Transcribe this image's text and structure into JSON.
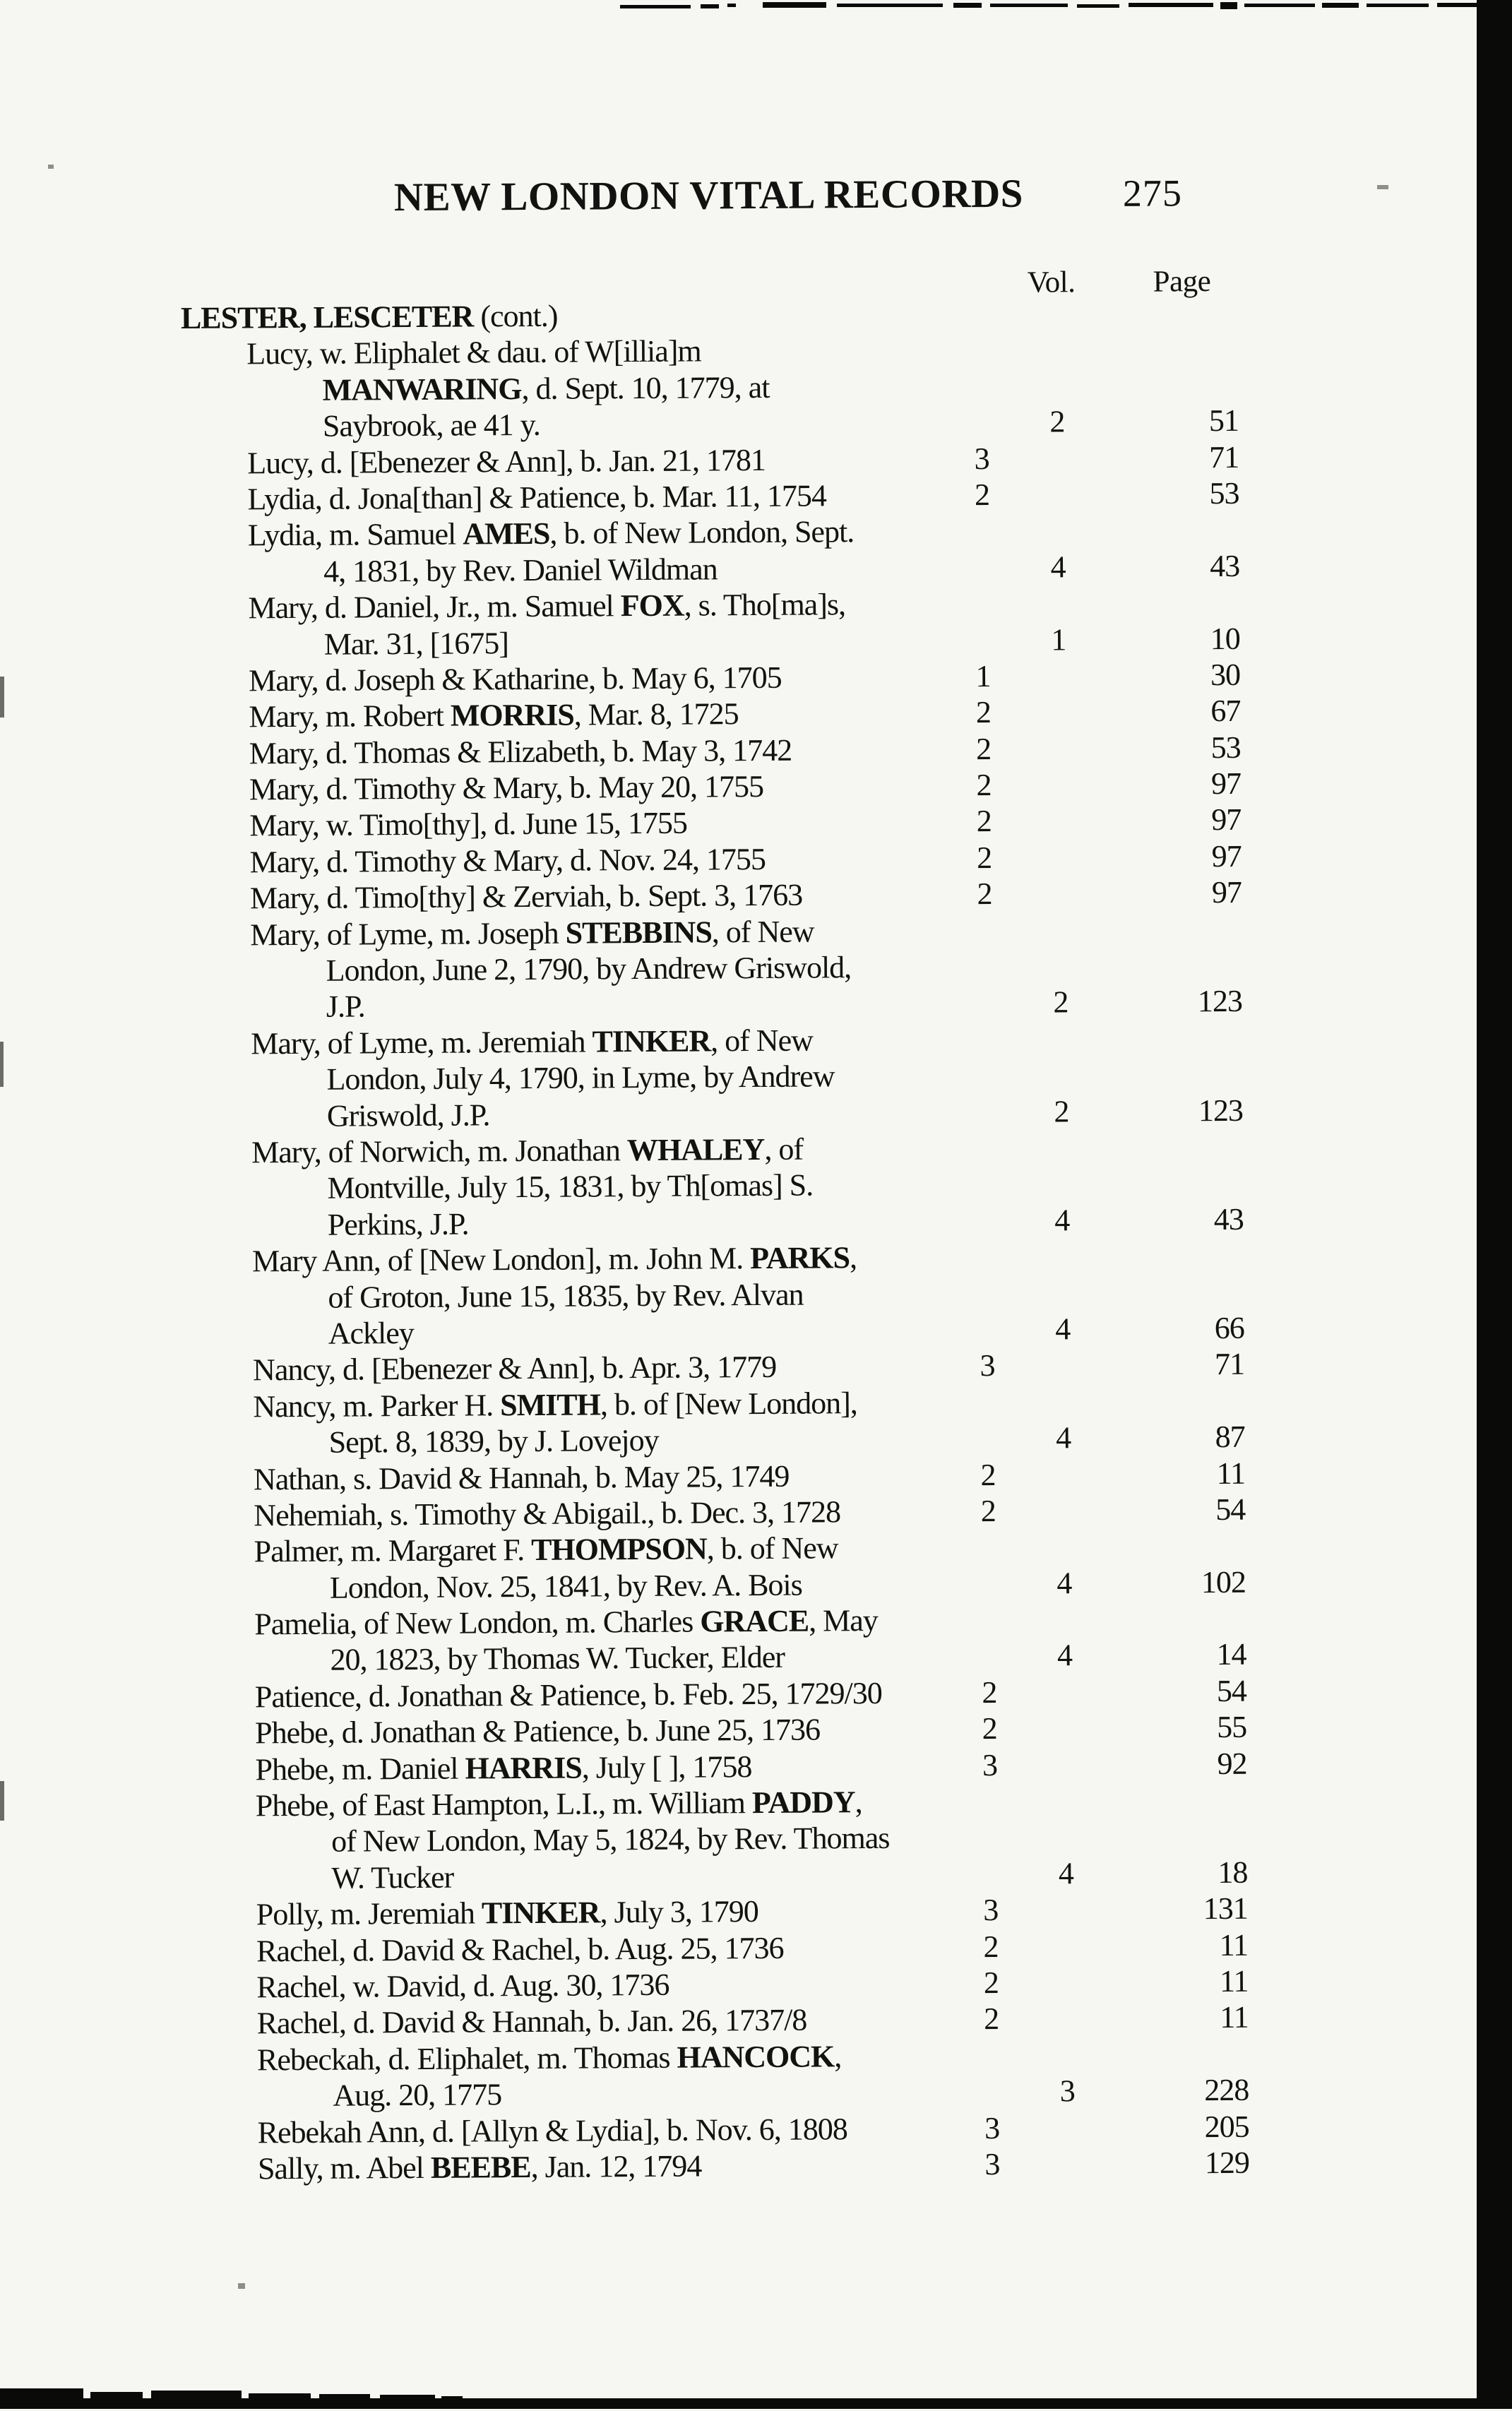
{
  "header": {
    "title": "NEW LONDON VITAL RECORDS",
    "page_number": "275"
  },
  "columns": {
    "vol": "Vol.",
    "page": "Page"
  },
  "section": {
    "heading": "LESTER, LESCETER",
    "heading_suffix": " (cont.)",
    "entries": [
      {
        "lines": [
          [
            {
              "t": "Lucy, w. Eliphalet & dau. of W[illia]m"
            }
          ],
          [
            {
              "t": "MANWARING",
              "b": 1
            },
            {
              "t": ", d. Sept. 10, 1779, at"
            }
          ],
          [
            {
              "t": "Saybrook, ae 41 y."
            }
          ]
        ],
        "vol": "2",
        "page": "51"
      },
      {
        "lines": [
          [
            {
              "t": "Lucy, d. [Ebenezer & Ann], b. Jan. 21, 1781"
            }
          ]
        ],
        "vol": "3",
        "page": "71"
      },
      {
        "lines": [
          [
            {
              "t": "Lydia, d. Jona[than] & Patience, b. Mar. 11, 1754"
            }
          ]
        ],
        "vol": "2",
        "page": "53"
      },
      {
        "lines": [
          [
            {
              "t": "Lydia, m. Samuel "
            },
            {
              "t": "AMES",
              "b": 1
            },
            {
              "t": ", b. of New London, Sept."
            }
          ],
          [
            {
              "t": "4, 1831, by Rev. Daniel Wildman"
            }
          ]
        ],
        "vol": "4",
        "page": "43"
      },
      {
        "lines": [
          [
            {
              "t": "Mary, d. Daniel, Jr., m. Samuel "
            },
            {
              "t": "FOX",
              "b": 1
            },
            {
              "t": ", s. Tho[ma]s,"
            }
          ],
          [
            {
              "t": "Mar. 31, [1675]"
            }
          ]
        ],
        "vol": "1",
        "page": "10"
      },
      {
        "lines": [
          [
            {
              "t": "Mary, d. Joseph & Katharine, b. May 6, 1705"
            }
          ]
        ],
        "vol": "1",
        "page": "30"
      },
      {
        "lines": [
          [
            {
              "t": "Mary, m. Robert "
            },
            {
              "t": "MORRIS",
              "b": 1
            },
            {
              "t": ", Mar. 8, 1725"
            }
          ]
        ],
        "vol": "2",
        "page": "67"
      },
      {
        "lines": [
          [
            {
              "t": "Mary, d. Thomas & Elizabeth, b. May 3, 1742"
            }
          ]
        ],
        "vol": "2",
        "page": "53"
      },
      {
        "lines": [
          [
            {
              "t": "Mary, d. Timothy & Mary, b. May 20, 1755"
            }
          ]
        ],
        "vol": "2",
        "page": "97"
      },
      {
        "lines": [
          [
            {
              "t": "Mary, w. Timo[thy], d. June 15, 1755"
            }
          ]
        ],
        "vol": "2",
        "page": "97"
      },
      {
        "lines": [
          [
            {
              "t": "Mary, d. Timothy & Mary, d. Nov. 24, 1755"
            }
          ]
        ],
        "vol": "2",
        "page": "97"
      },
      {
        "lines": [
          [
            {
              "t": "Mary, d. Timo[thy] & Zerviah, b. Sept. 3, 1763"
            }
          ]
        ],
        "vol": "2",
        "page": "97"
      },
      {
        "lines": [
          [
            {
              "t": "Mary, of Lyme, m. Joseph "
            },
            {
              "t": "STEBBINS",
              "b": 1
            },
            {
              "t": ", of New"
            }
          ],
          [
            {
              "t": "London, June 2, 1790, by Andrew Griswold,"
            }
          ],
          [
            {
              "t": "J.P."
            }
          ]
        ],
        "vol": "2",
        "page": "123"
      },
      {
        "lines": [
          [
            {
              "t": "Mary, of Lyme, m. Jeremiah "
            },
            {
              "t": "TINKER",
              "b": 1
            },
            {
              "t": ", of New"
            }
          ],
          [
            {
              "t": "London, July 4, 1790, in Lyme, by Andrew"
            }
          ],
          [
            {
              "t": "Griswold, J.P."
            }
          ]
        ],
        "vol": "2",
        "page": "123"
      },
      {
        "lines": [
          [
            {
              "t": "Mary, of Norwich, m. Jonathan "
            },
            {
              "t": "WHALEY",
              "b": 1
            },
            {
              "t": ", of"
            }
          ],
          [
            {
              "t": "Montville, July 15, 1831, by Th[omas] S."
            }
          ],
          [
            {
              "t": "Perkins, J.P."
            }
          ]
        ],
        "vol": "4",
        "page": "43"
      },
      {
        "lines": [
          [
            {
              "t": "Mary Ann, of [New London], m. John M. "
            },
            {
              "t": "PARKS",
              "b": 1
            },
            {
              "t": ","
            }
          ],
          [
            {
              "t": "of Groton, June 15, 1835, by Rev. Alvan"
            }
          ],
          [
            {
              "t": "Ackley"
            }
          ]
        ],
        "vol": "4",
        "page": "66"
      },
      {
        "lines": [
          [
            {
              "t": "Nancy, d. [Ebenezer & Ann], b. Apr. 3, 1779"
            }
          ]
        ],
        "vol": "3",
        "page": "71"
      },
      {
        "lines": [
          [
            {
              "t": "Nancy, m. Parker H. "
            },
            {
              "t": "SMITH",
              "b": 1
            },
            {
              "t": ", b. of [New London],"
            }
          ],
          [
            {
              "t": "Sept. 8, 1839, by J. Lovejoy"
            }
          ]
        ],
        "vol": "4",
        "page": "87"
      },
      {
        "lines": [
          [
            {
              "t": "Nathan, s. David & Hannah, b. May 25, 1749"
            }
          ]
        ],
        "vol": "2",
        "page": "11"
      },
      {
        "lines": [
          [
            {
              "t": "Nehemiah, s. Timothy & Abigail., b. Dec. 3, 1728"
            }
          ]
        ],
        "vol": "2",
        "page": "54"
      },
      {
        "lines": [
          [
            {
              "t": "Palmer, m. Margaret F. "
            },
            {
              "t": "THOMPSON",
              "b": 1
            },
            {
              "t": ", b. of New"
            }
          ],
          [
            {
              "t": "London, Nov. 25, 1841, by Rev. A. Bois"
            }
          ]
        ],
        "vol": "4",
        "page": "102"
      },
      {
        "lines": [
          [
            {
              "t": "Pamelia, of New London, m. Charles "
            },
            {
              "t": "GRACE",
              "b": 1
            },
            {
              "t": ", May"
            }
          ],
          [
            {
              "t": "20, 1823, by Thomas W. Tucker, Elder"
            }
          ]
        ],
        "vol": "4",
        "page": "14"
      },
      {
        "lines": [
          [
            {
              "t": "Patience, d. Jonathan & Patience, b. Feb. 25, 1729/30"
            }
          ]
        ],
        "vol": "2",
        "page": "54"
      },
      {
        "lines": [
          [
            {
              "t": "Phebe, d. Jonathan & Patience, b. June 25, 1736"
            }
          ]
        ],
        "vol": "2",
        "page": "55"
      },
      {
        "lines": [
          [
            {
              "t": "Phebe, m. Daniel "
            },
            {
              "t": "HARRIS",
              "b": 1
            },
            {
              "t": ", July [ ], 1758"
            }
          ]
        ],
        "vol": "3",
        "page": "92"
      },
      {
        "lines": [
          [
            {
              "t": "Phebe, of East Hampton, L.I., m. William "
            },
            {
              "t": "PADDY",
              "b": 1
            },
            {
              "t": ","
            }
          ],
          [
            {
              "t": "of New London, May 5, 1824, by Rev. Thomas"
            }
          ],
          [
            {
              "t": "W. Tucker"
            }
          ]
        ],
        "vol": "4",
        "page": "18"
      },
      {
        "lines": [
          [
            {
              "t": "Polly, m. Jeremiah "
            },
            {
              "t": "TINKER",
              "b": 1
            },
            {
              "t": ", July 3, 1790"
            }
          ]
        ],
        "vol": "3",
        "page": "131"
      },
      {
        "lines": [
          [
            {
              "t": "Rachel, d. David & Rachel, b. Aug. 25, 1736"
            }
          ]
        ],
        "vol": "2",
        "page": "11"
      },
      {
        "lines": [
          [
            {
              "t": "Rachel, w. David, d. Aug. 30, 1736"
            }
          ]
        ],
        "vol": "2",
        "page": "11"
      },
      {
        "lines": [
          [
            {
              "t": "Rachel, d. David & Hannah, b. Jan. 26, 1737/8"
            }
          ]
        ],
        "vol": "2",
        "page": "11"
      },
      {
        "lines": [
          [
            {
              "t": "Rebeckah, d. Eliphalet, m. Thomas "
            },
            {
              "t": "HANCOCK",
              "b": 1
            },
            {
              "t": ","
            }
          ],
          [
            {
              "t": "Aug. 20, 1775"
            }
          ]
        ],
        "vol": "3",
        "page": "228"
      },
      {
        "lines": [
          [
            {
              "t": "Rebekah Ann, d. [Allyn & Lydia], b. Nov. 6, 1808"
            }
          ]
        ],
        "vol": "3",
        "page": "205"
      },
      {
        "lines": [
          [
            {
              "t": "Sally, m. Abel "
            },
            {
              "t": "BEEBE",
              "b": 1
            },
            {
              "t": ", Jan. 12, 1794"
            }
          ]
        ],
        "vol": "3",
        "page": "129"
      }
    ]
  }
}
